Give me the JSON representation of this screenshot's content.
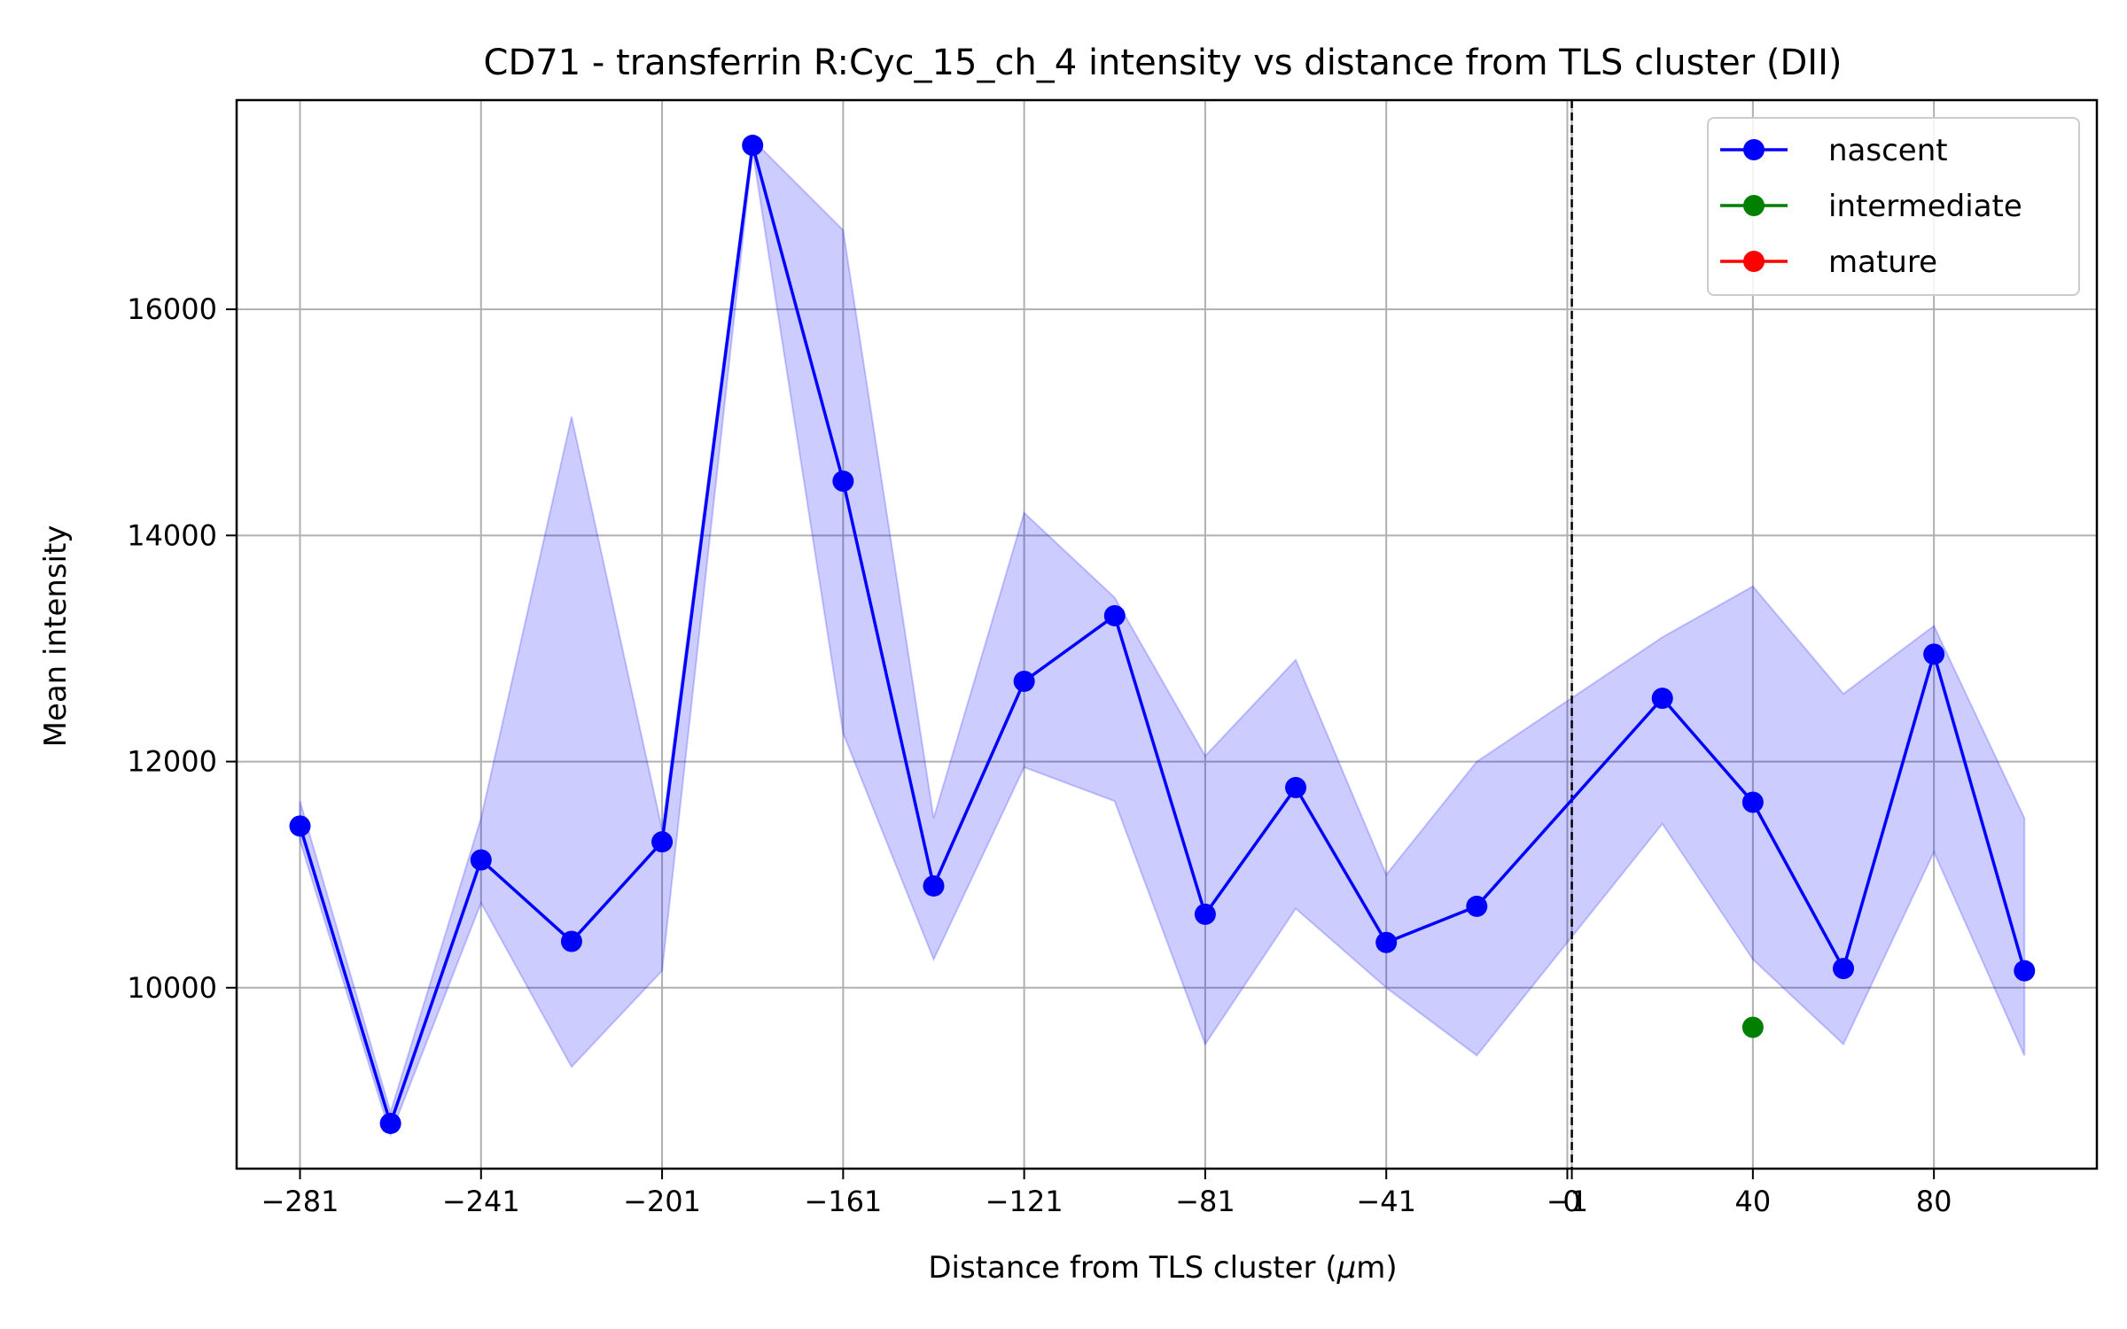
{
  "chart_data": {
    "type": "line",
    "title": "CD71 - transferrin R:Cyc_15_ch_4 intensity vs distance from TLS cluster (DII)",
    "xlabel_prefix": "Distance from TLS cluster (",
    "xlabel_unit": "μ",
    "xlabel_suffix": "m)",
    "ylabel": "Mean intensity",
    "xlim": [
      -295,
      116
    ],
    "ylim": [
      8400,
      17850
    ],
    "grid": true,
    "legend_position": "top-right",
    "x_ticks": [
      {
        "value": -281,
        "label": "−281"
      },
      {
        "value": -241,
        "label": "−241"
      },
      {
        "value": -201,
        "label": "−201"
      },
      {
        "value": -161,
        "label": "−161"
      },
      {
        "value": -121,
        "label": "−121"
      },
      {
        "value": -81,
        "label": "−81"
      },
      {
        "value": -41,
        "label": "−41"
      },
      {
        "value": -1,
        "label": "−1"
      },
      {
        "value": 0,
        "label": "0"
      },
      {
        "value": 40,
        "label": "40"
      },
      {
        "value": 80,
        "label": "80"
      }
    ],
    "y_ticks": [
      {
        "value": 10000,
        "label": "10000"
      },
      {
        "value": 12000,
        "label": "12000"
      },
      {
        "value": 14000,
        "label": "14000"
      },
      {
        "value": 16000,
        "label": "16000"
      }
    ],
    "vline_x": 0,
    "series": [
      {
        "name": "nascent",
        "color": "#0000ff",
        "band_color": "#0000ff",
        "points": [
          {
            "x": -281,
            "y": 11430,
            "lo": 11300,
            "hi": 11650
          },
          {
            "x": -261,
            "y": 8800,
            "lo": 8700,
            "hi": 8900
          },
          {
            "x": -241,
            "y": 11130,
            "lo": 10750,
            "hi": 11500
          },
          {
            "x": -221,
            "y": 10410,
            "lo": 9300,
            "hi": 15050
          },
          {
            "x": -201,
            "y": 11290,
            "lo": 10150,
            "hi": 11400
          },
          {
            "x": -181,
            "y": 17450,
            "lo": 17400,
            "hi": 17500
          },
          {
            "x": -161,
            "y": 14480,
            "lo": 12250,
            "hi": 16700
          },
          {
            "x": -141,
            "y": 10900,
            "lo": 10250,
            "hi": 11500
          },
          {
            "x": -121,
            "y": 12710,
            "lo": 11950,
            "hi": 14200
          },
          {
            "x": -101,
            "y": 13290,
            "lo": 11650,
            "hi": 13450
          },
          {
            "x": -81,
            "y": 10650,
            "lo": 9500,
            "hi": 12050
          },
          {
            "x": -61,
            "y": 11770,
            "lo": 10700,
            "hi": 12900
          },
          {
            "x": -41,
            "y": 10400,
            "lo": 10000,
            "hi": 11000
          },
          {
            "x": -21,
            "y": 10720,
            "lo": 9400,
            "hi": 12000
          },
          {
            "x": 20,
            "y": 12560,
            "lo": 11450,
            "hi": 13100
          },
          {
            "x": 40,
            "y": 11640,
            "lo": 10250,
            "hi": 13550
          },
          {
            "x": 60,
            "y": 10170,
            "lo": 9500,
            "hi": 12600
          },
          {
            "x": 80,
            "y": 12950,
            "lo": 11200,
            "hi": 13200
          },
          {
            "x": 100,
            "y": 10150,
            "lo": 9400,
            "hi": 11500
          }
        ]
      },
      {
        "name": "intermediate",
        "color": "#008000",
        "points": [
          {
            "x": 40,
            "y": 9650
          }
        ]
      },
      {
        "name": "mature",
        "color": "#ff0000",
        "points": []
      }
    ]
  }
}
